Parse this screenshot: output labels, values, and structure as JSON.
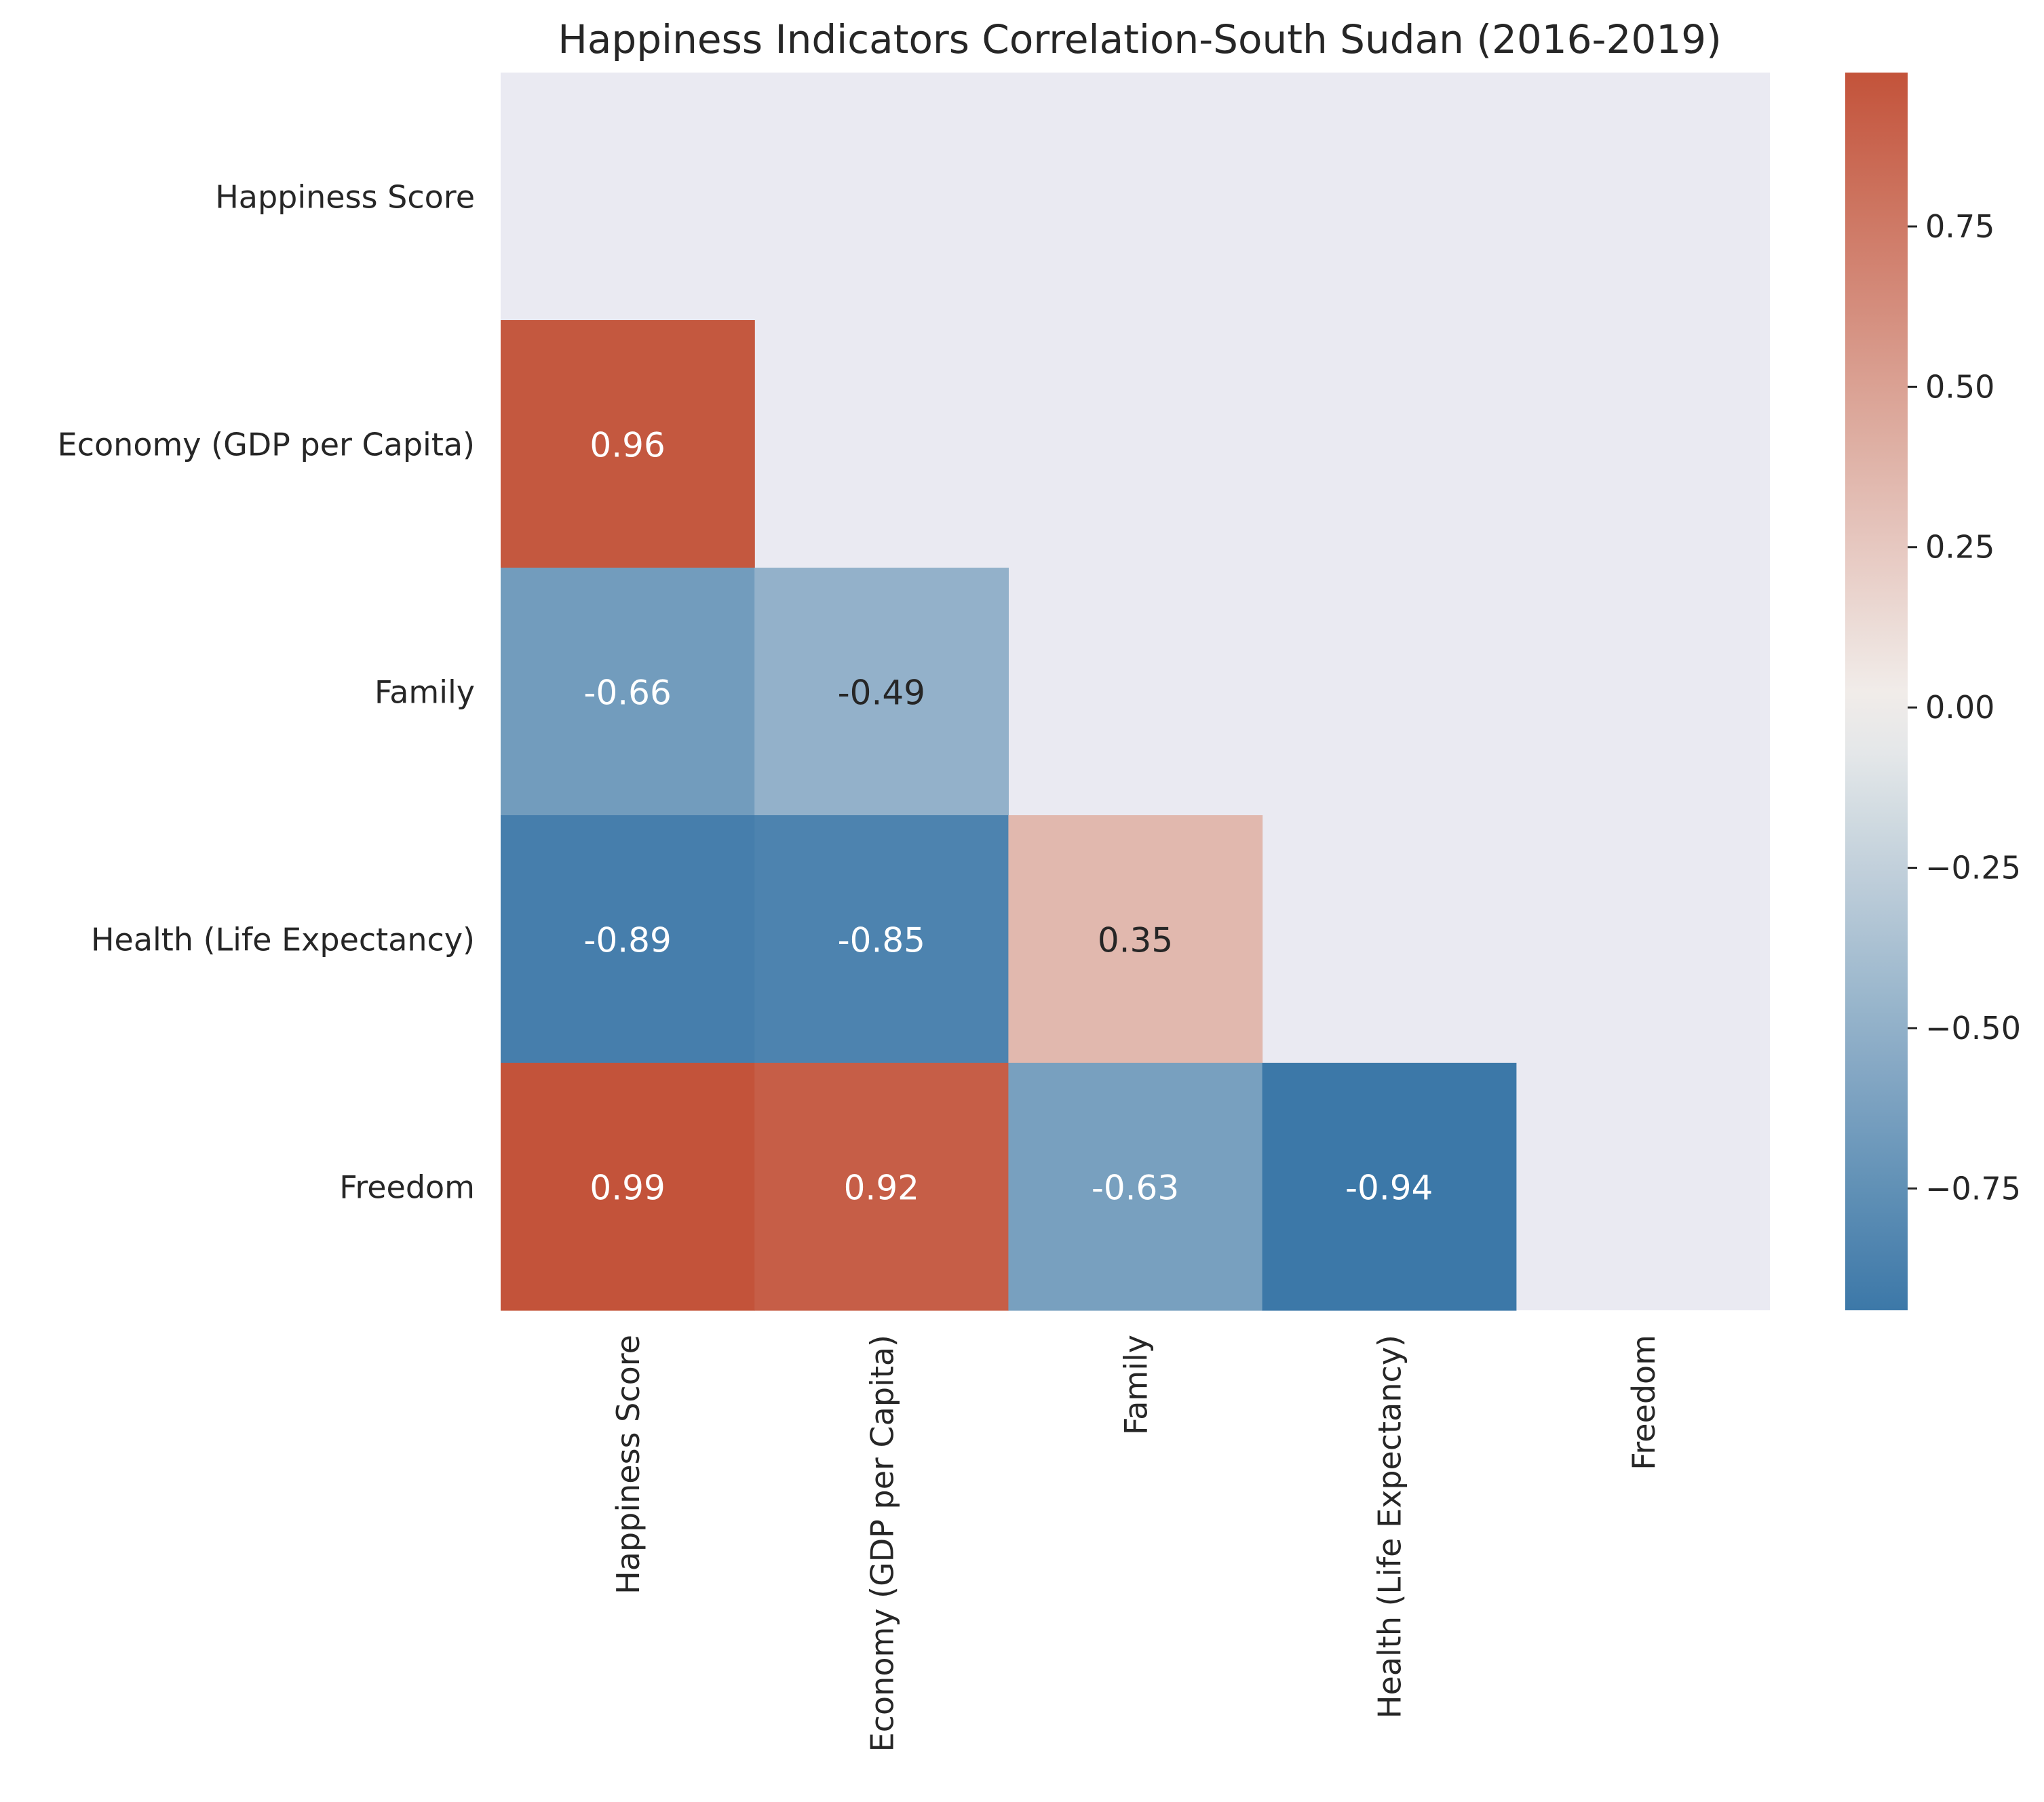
{
  "chart_data": {
    "type": "heatmap",
    "title": "Happiness Indicators Correlation-South Sudan (2016-2019)",
    "xlabel": "",
    "ylabel": "",
    "row_labels": [
      "Happiness Score",
      "Economy (GDP per Capita)",
      "Family",
      "Health (Life Expectancy)",
      "Freedom"
    ],
    "col_labels": [
      "Happiness Score",
      "Economy (GDP per Capita)",
      "Family",
      "Health (Life Expectancy)",
      "Freedom"
    ],
    "mask": "upper-triangle-including-diagonal",
    "cells": [
      {
        "row": 1,
        "col": 0,
        "value": 0.96,
        "label": "0.96"
      },
      {
        "row": 2,
        "col": 0,
        "value": -0.66,
        "label": "-0.66"
      },
      {
        "row": 2,
        "col": 1,
        "value": -0.49,
        "label": "-0.49"
      },
      {
        "row": 3,
        "col": 0,
        "value": -0.89,
        "label": "-0.89"
      },
      {
        "row": 3,
        "col": 1,
        "value": -0.85,
        "label": "-0.85"
      },
      {
        "row": 3,
        "col": 2,
        "value": 0.35,
        "label": "0.35"
      },
      {
        "row": 4,
        "col": 0,
        "value": 0.99,
        "label": "0.99"
      },
      {
        "row": 4,
        "col": 1,
        "value": 0.92,
        "label": "0.92"
      },
      {
        "row": 4,
        "col": 2,
        "value": -0.63,
        "label": "-0.63"
      },
      {
        "row": 4,
        "col": 3,
        "value": -0.94,
        "label": "-0.94"
      }
    ],
    "colorbar": {
      "vmin": -0.94,
      "vmax": 0.99,
      "ticks": [
        0.75,
        0.5,
        0.25,
        0.0,
        -0.25,
        -0.5,
        -0.75
      ],
      "tick_labels": [
        "0.75",
        "0.50",
        "0.25",
        "0.00",
        "−0.25",
        "−0.50",
        "−0.75"
      ]
    },
    "colors": {
      "negative": "#3c78a8",
      "neutral": "#f2f0ee",
      "positive": "#c3533a",
      "background": "#eaeaf2",
      "text_light": "#ffffff",
      "text_dark": "#262626"
    },
    "grid": false,
    "legend": "colorbar-right"
  }
}
